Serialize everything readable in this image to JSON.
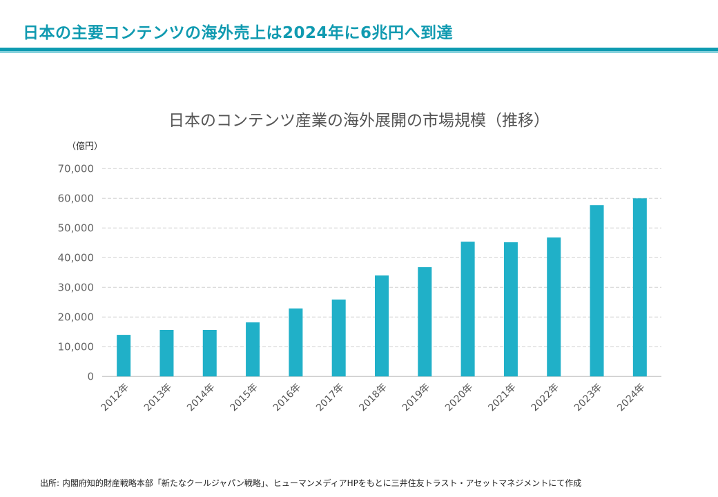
{
  "headline": "日本の主要コンテンツの海外売上は2024年に6兆円へ到達",
  "colors": {
    "accent": "#0f9bb1",
    "accent_light": "#86d1dc",
    "bar": "#20b0c8",
    "grid": "#d0d0d0"
  },
  "chart_data": {
    "type": "bar",
    "title": "日本のコンテンツ産業の海外展開の市場規模（推移）",
    "ylabel": "（億円）",
    "xlabel": "",
    "categories": [
      "2012年",
      "2013年",
      "2014年",
      "2015年",
      "2016年",
      "2017年",
      "2018年",
      "2019年",
      "2020年",
      "2021年",
      "2022年",
      "2023年",
      "2024年"
    ],
    "values": [
      14000,
      15650,
      15650,
      18200,
      22900,
      25900,
      34000,
      36800,
      45400,
      45200,
      46800,
      57700,
      60000
    ],
    "ylim": [
      0,
      70000
    ],
    "yticks": [
      0,
      10000,
      20000,
      30000,
      40000,
      50000,
      60000,
      70000
    ],
    "ytick_labels": [
      "0",
      "10,000",
      "20,000",
      "30,000",
      "40,000",
      "50,000",
      "60,000",
      "70,000"
    ],
    "grid": true,
    "legend": "none"
  },
  "source": "出所: 内閣府知的財産戦略本部「新たなクールジャパン戦略」、ヒューマンメディアHPをもとに三井住友トラスト・アセットマネジメントにて作成"
}
